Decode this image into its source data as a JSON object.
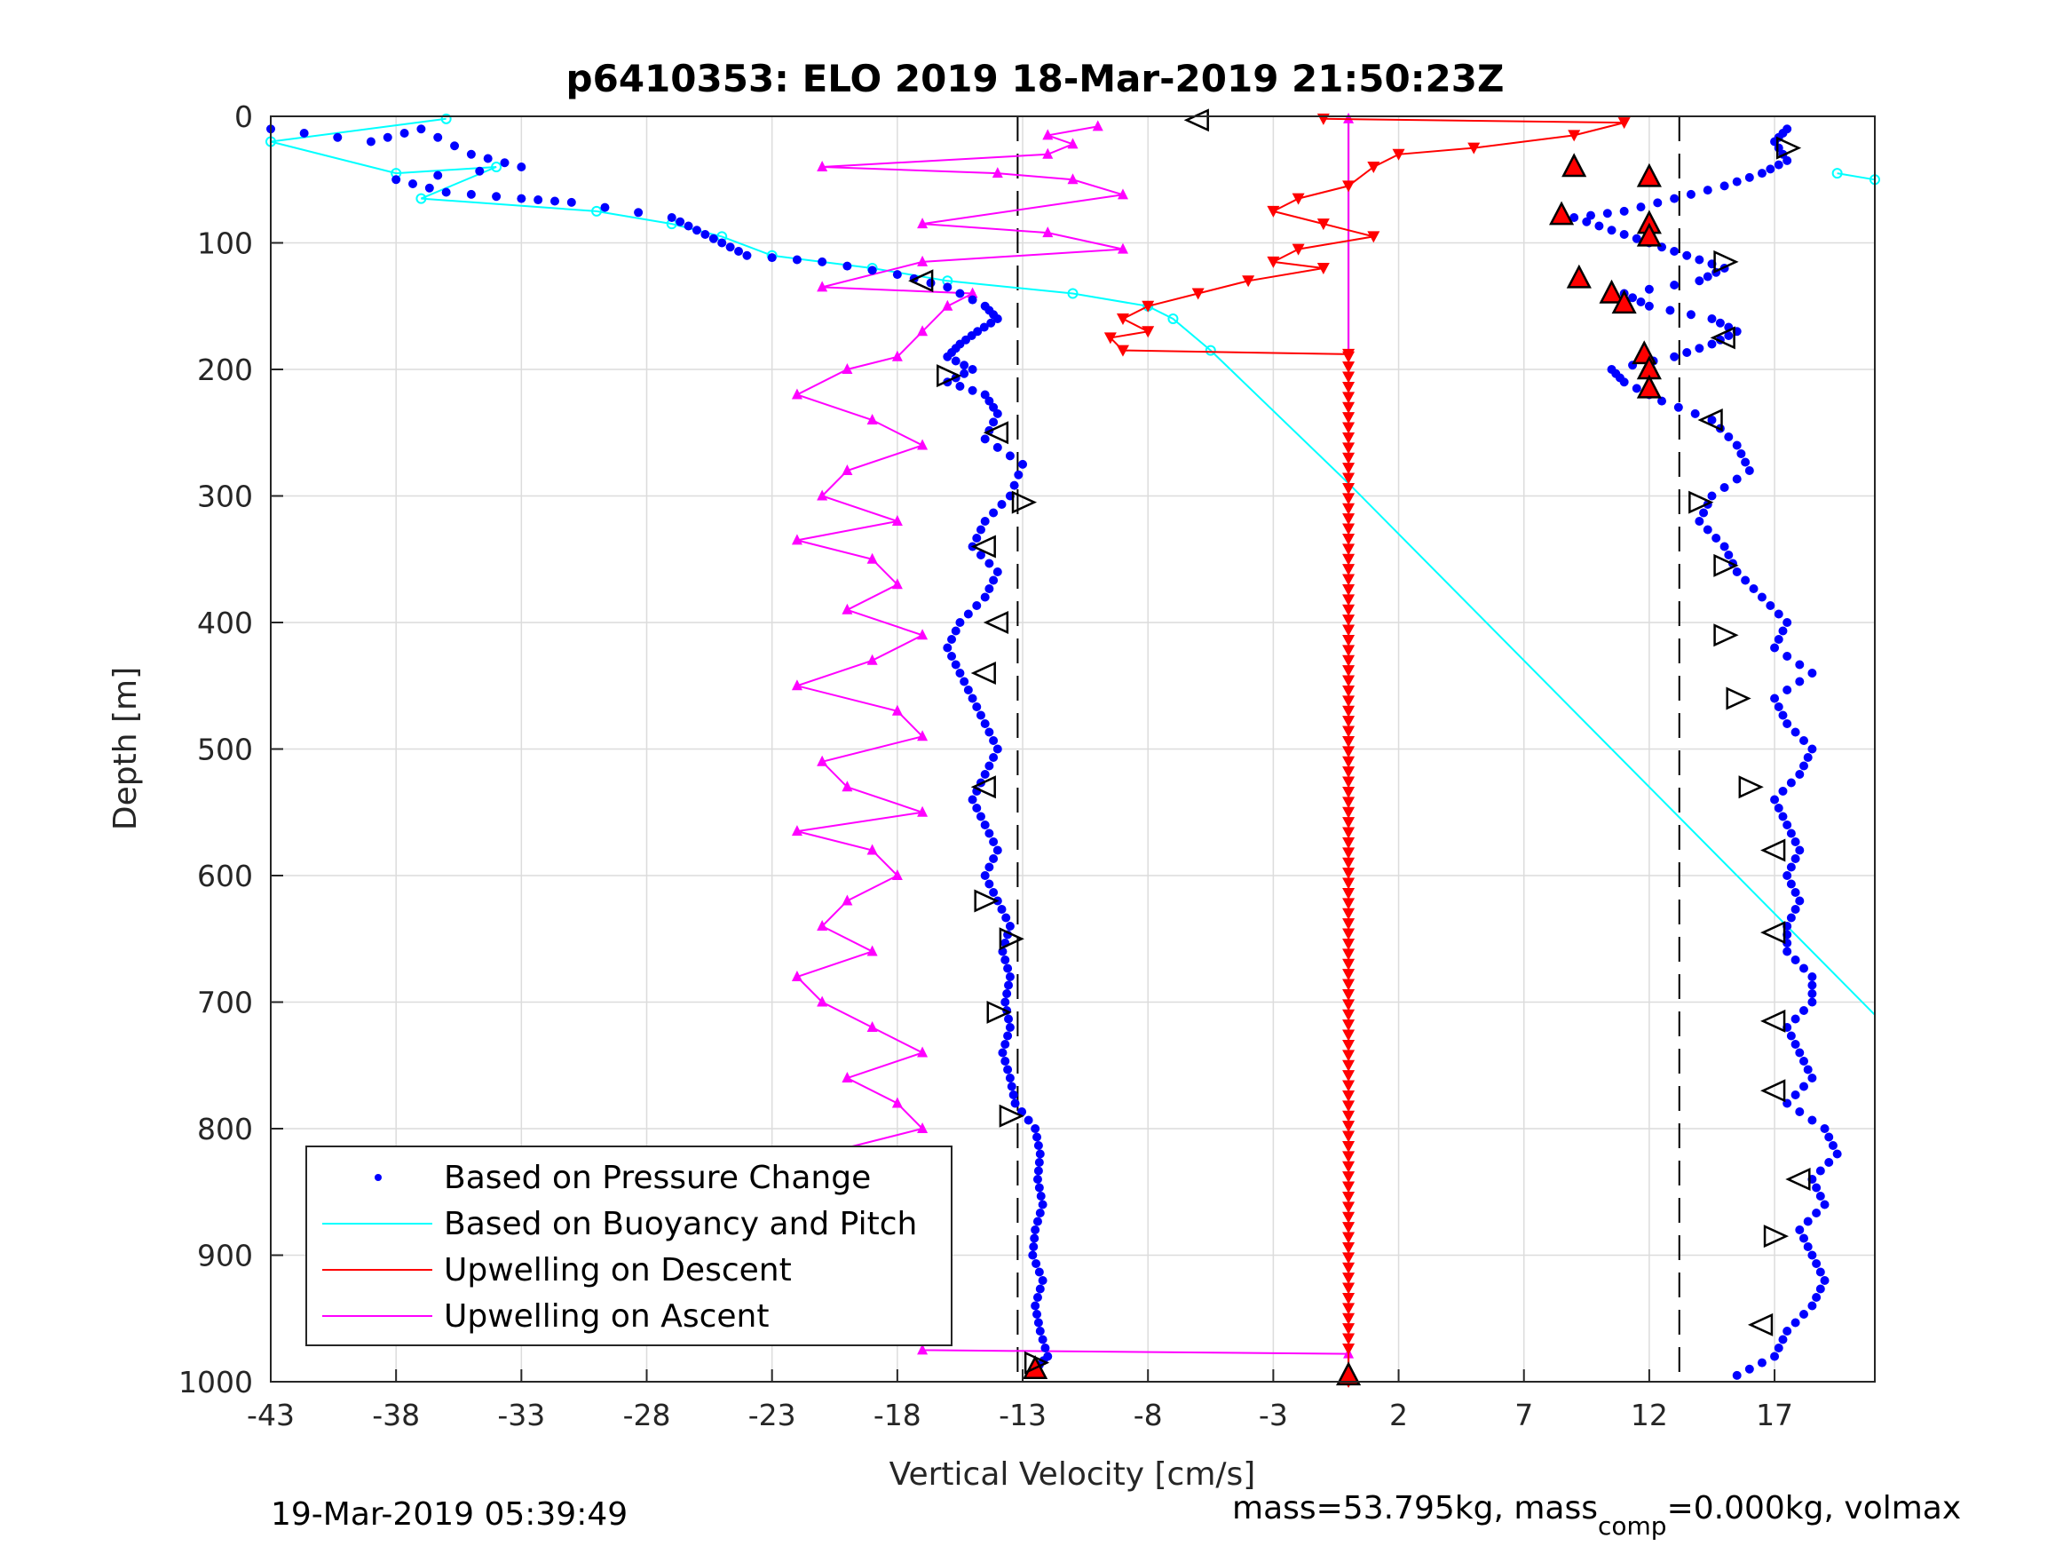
{
  "chart_data": {
    "type": "scatter",
    "title": "p6410353: ELO 2019 18-Mar-2019 21:50:23Z",
    "xlabel": "Vertical Velocity [cm/s]",
    "ylabel": "Depth [m]",
    "xlim": [
      -43,
      21
    ],
    "ylim": [
      0,
      1000
    ],
    "y_reversed": true,
    "grid": true,
    "xticks": [
      -43,
      -38,
      -33,
      -28,
      -23,
      -18,
      -13,
      -8,
      -3,
      2,
      7,
      12,
      17
    ],
    "yticks": [
      0,
      100,
      200,
      300,
      400,
      500,
      600,
      700,
      800,
      900,
      1000
    ],
    "legend": {
      "position": "bottom-left",
      "entries": [
        "Based on Pressure Change",
        "Based on Buoyancy and Pitch",
        "Upwelling on Descent",
        "Upwelling on Ascent"
      ]
    },
    "colors": {
      "pressure": "#0000ff",
      "buoyancy": "#00ffff",
      "descent": "#ff0000",
      "ascent": "#ff00ff"
    },
    "reference_lines_x": [
      -13.2,
      0,
      13.2
    ],
    "series": [
      {
        "name": "Based on Pressure Change",
        "descent_points": [
          [
            -43,
            10
          ],
          [
            -39,
            20
          ],
          [
            -37,
            10
          ],
          [
            -35,
            30
          ],
          [
            -33,
            40
          ],
          [
            -38,
            50
          ],
          [
            -36,
            60
          ],
          [
            -33,
            65
          ],
          [
            -31,
            68
          ],
          [
            -27,
            80
          ],
          [
            -26,
            90
          ],
          [
            -25,
            100
          ],
          [
            -24,
            110
          ],
          [
            -21,
            115
          ],
          [
            -18,
            125
          ],
          [
            -16,
            135
          ],
          [
            -14.5,
            150
          ],
          [
            -14,
            160
          ],
          [
            -14.8,
            170
          ],
          [
            -15.5,
            180
          ],
          [
            -16,
            190
          ],
          [
            -15,
            200
          ],
          [
            -16,
            210
          ],
          [
            -14.5,
            220
          ],
          [
            -14,
            235
          ],
          [
            -14.5,
            255
          ],
          [
            -13,
            275
          ],
          [
            -13.5,
            300
          ],
          [
            -14.5,
            320
          ],
          [
            -15,
            340
          ],
          [
            -14,
            360
          ],
          [
            -14.5,
            380
          ],
          [
            -15.5,
            400
          ],
          [
            -16,
            420
          ],
          [
            -15.5,
            440
          ],
          [
            -15,
            460
          ],
          [
            -14.5,
            480
          ],
          [
            -14,
            500
          ],
          [
            -14.5,
            520
          ],
          [
            -15,
            540
          ],
          [
            -14.5,
            560
          ],
          [
            -14,
            580
          ],
          [
            -14.5,
            600
          ],
          [
            -14,
            620
          ],
          [
            -13.5,
            640
          ],
          [
            -13.8,
            660
          ],
          [
            -13.5,
            680
          ],
          [
            -13.7,
            700
          ],
          [
            -13.5,
            720
          ],
          [
            -13.8,
            740
          ],
          [
            -13.5,
            760
          ],
          [
            -13.3,
            780
          ],
          [
            -12.5,
            800
          ],
          [
            -12.3,
            820
          ],
          [
            -12.4,
            840
          ],
          [
            -12.2,
            860
          ],
          [
            -12.5,
            880
          ],
          [
            -12.6,
            900
          ],
          [
            -12.2,
            920
          ],
          [
            -12.5,
            940
          ],
          [
            -12.3,
            960
          ],
          [
            -12,
            980
          ],
          [
            -12.5,
            990
          ]
        ],
        "ascent_points": [
          [
            17.5,
            10
          ],
          [
            17,
            20
          ],
          [
            17.5,
            35
          ],
          [
            16.5,
            45
          ],
          [
            15,
            55
          ],
          [
            13,
            65
          ],
          [
            11,
            75
          ],
          [
            9,
            80
          ],
          [
            10.5,
            90
          ],
          [
            12,
            100
          ],
          [
            13.5,
            110
          ],
          [
            15,
            120
          ],
          [
            14,
            130
          ],
          [
            11,
            140
          ],
          [
            12,
            150
          ],
          [
            14.5,
            160
          ],
          [
            15.5,
            170
          ],
          [
            14.5,
            180
          ],
          [
            13,
            190
          ],
          [
            10.5,
            200
          ],
          [
            11,
            210
          ],
          [
            12.5,
            225
          ],
          [
            14.5,
            240
          ],
          [
            15.5,
            260
          ],
          [
            16,
            280
          ],
          [
            14.5,
            300
          ],
          [
            14,
            320
          ],
          [
            15,
            340
          ],
          [
            15.5,
            360
          ],
          [
            16.5,
            380
          ],
          [
            17.5,
            400
          ],
          [
            17,
            420
          ],
          [
            18.5,
            440
          ],
          [
            17,
            460
          ],
          [
            17.5,
            480
          ],
          [
            18.5,
            500
          ],
          [
            18,
            520
          ],
          [
            17,
            540
          ],
          [
            17.5,
            560
          ],
          [
            18,
            580
          ],
          [
            17.5,
            600
          ],
          [
            18,
            620
          ],
          [
            17.5,
            640
          ],
          [
            17.5,
            660
          ],
          [
            18.5,
            680
          ],
          [
            18.5,
            700
          ],
          [
            17.5,
            720
          ],
          [
            18,
            740
          ],
          [
            18.5,
            760
          ],
          [
            17.5,
            780
          ],
          [
            19,
            800
          ],
          [
            19.5,
            820
          ],
          [
            18.5,
            840
          ],
          [
            19,
            860
          ],
          [
            18,
            880
          ],
          [
            18.5,
            900
          ],
          [
            19,
            920
          ],
          [
            18.5,
            940
          ],
          [
            17.5,
            960
          ],
          [
            17,
            980
          ],
          [
            15.5,
            995
          ]
        ]
      },
      {
        "name": "Based on Buoyancy and Pitch",
        "points": [
          [
            -36,
            2
          ],
          [
            -43,
            20
          ],
          [
            -38,
            45
          ],
          [
            -34,
            40
          ],
          [
            -37,
            65
          ],
          [
            -30,
            75
          ],
          [
            -27,
            85
          ],
          [
            -25,
            95
          ],
          [
            -23,
            110
          ],
          [
            -19,
            120
          ],
          [
            -16,
            130
          ],
          [
            -11,
            140
          ],
          [
            -8,
            150
          ],
          [
            -7,
            160
          ],
          [
            -5.5,
            185
          ],
          [
            0,
            290
          ],
          [
            21,
            710
          ]
        ],
        "ascent_points": [
          [
            19.5,
            45
          ],
          [
            21,
            50
          ]
        ]
      },
      {
        "name": "Upwelling on Descent",
        "points": [
          [
            -1,
            2
          ],
          [
            11,
            5
          ],
          [
            9,
            15
          ],
          [
            5,
            25
          ],
          [
            2,
            30
          ],
          [
            1,
            40
          ],
          [
            0,
            55
          ],
          [
            -2,
            65
          ],
          [
            -3,
            75
          ],
          [
            -1,
            85
          ],
          [
            1,
            95
          ],
          [
            -2,
            105
          ],
          [
            -3,
            115
          ],
          [
            -1,
            120
          ],
          [
            -4,
            130
          ],
          [
            -6,
            140
          ],
          [
            -8,
            150
          ],
          [
            -9,
            160
          ],
          [
            -8,
            170
          ],
          [
            -9.5,
            175
          ],
          [
            -9,
            185
          ],
          [
            0,
            188
          ],
          [
            0,
            1000
          ]
        ],
        "markers": [
          [
            9,
            40
          ],
          [
            12,
            48
          ],
          [
            8.5,
            78
          ],
          [
            12,
            85
          ],
          [
            12,
            95
          ],
          [
            9.2,
            128
          ],
          [
            10.5,
            140
          ],
          [
            11,
            148
          ],
          [
            11.8,
            188
          ],
          [
            12,
            200
          ],
          [
            12,
            215
          ],
          [
            0,
            995
          ],
          [
            -12.5,
            990
          ]
        ]
      },
      {
        "name": "Upwelling on Ascent",
        "points": [
          [
            -10,
            8
          ],
          [
            -12,
            15
          ],
          [
            -11,
            22
          ],
          [
            -12,
            30
          ],
          [
            -21,
            40
          ],
          [
            -14,
            45
          ],
          [
            -11,
            50
          ],
          [
            -9,
            62
          ],
          [
            -17,
            85
          ],
          [
            -12,
            92
          ],
          [
            -9,
            105
          ],
          [
            -17,
            115
          ],
          [
            -21,
            135
          ],
          [
            -15,
            140
          ],
          [
            -16,
            150
          ],
          [
            -17,
            170
          ],
          [
            -18,
            190
          ],
          [
            -20,
            200
          ],
          [
            -22,
            220
          ],
          [
            -19,
            240
          ],
          [
            -17,
            260
          ],
          [
            -20,
            280
          ],
          [
            -21,
            300
          ],
          [
            -18,
            320
          ],
          [
            -22,
            335
          ],
          [
            -19,
            350
          ],
          [
            -18,
            370
          ],
          [
            -20,
            390
          ],
          [
            -17,
            410
          ],
          [
            -19,
            430
          ],
          [
            -22,
            450
          ],
          [
            -18,
            470
          ],
          [
            -17,
            490
          ],
          [
            -21,
            510
          ],
          [
            -20,
            530
          ],
          [
            -17,
            550
          ],
          [
            -22,
            565
          ],
          [
            -19,
            580
          ],
          [
            -18,
            600
          ],
          [
            -20,
            620
          ],
          [
            -21,
            640
          ],
          [
            -19,
            660
          ],
          [
            -22,
            680
          ],
          [
            -21,
            700
          ],
          [
            -19,
            720
          ],
          [
            -17,
            740
          ],
          [
            -20,
            760
          ],
          [
            -18,
            780
          ],
          [
            -17,
            800
          ],
          [
            -21,
            820
          ],
          [
            -18,
            840
          ],
          [
            -19,
            860
          ],
          [
            -22,
            880
          ],
          [
            -16,
            900
          ],
          [
            -18,
            920
          ],
          [
            -20,
            940
          ],
          [
            -17,
            960
          ],
          [
            -17,
            975
          ],
          [
            0,
            978
          ],
          [
            0,
            2
          ]
        ]
      }
    ],
    "heading_triangles": [
      [
        -6,
        3
      ],
      [
        17.5,
        25
      ],
      [
        -17,
        130
      ],
      [
        15,
        115
      ],
      [
        15,
        175
      ],
      [
        -16,
        205
      ],
      [
        -14,
        250
      ],
      [
        -13,
        305
      ],
      [
        14.5,
        240
      ],
      [
        14,
        305
      ],
      [
        -14.5,
        340
      ],
      [
        15,
        355
      ],
      [
        -14,
        400
      ],
      [
        15,
        410
      ],
      [
        -14.5,
        440
      ],
      [
        15.5,
        460
      ],
      [
        -14.5,
        530
      ],
      [
        16,
        530
      ],
      [
        17,
        580
      ],
      [
        -14.5,
        620
      ],
      [
        17,
        645
      ],
      [
        -13.5,
        650
      ],
      [
        17,
        715
      ],
      [
        -14,
        708
      ],
      [
        17,
        770
      ],
      [
        -13.5,
        790
      ],
      [
        18,
        840
      ],
      [
        17,
        885
      ],
      [
        16.5,
        955
      ],
      [
        -12.5,
        985
      ]
    ]
  },
  "footer": {
    "left": "19-Mar-2019 05:39:49",
    "right_prefix": "mass=53.795kg, mass",
    "right_sub": "comp",
    "right_suffix": "=0.000kg, volmax"
  }
}
